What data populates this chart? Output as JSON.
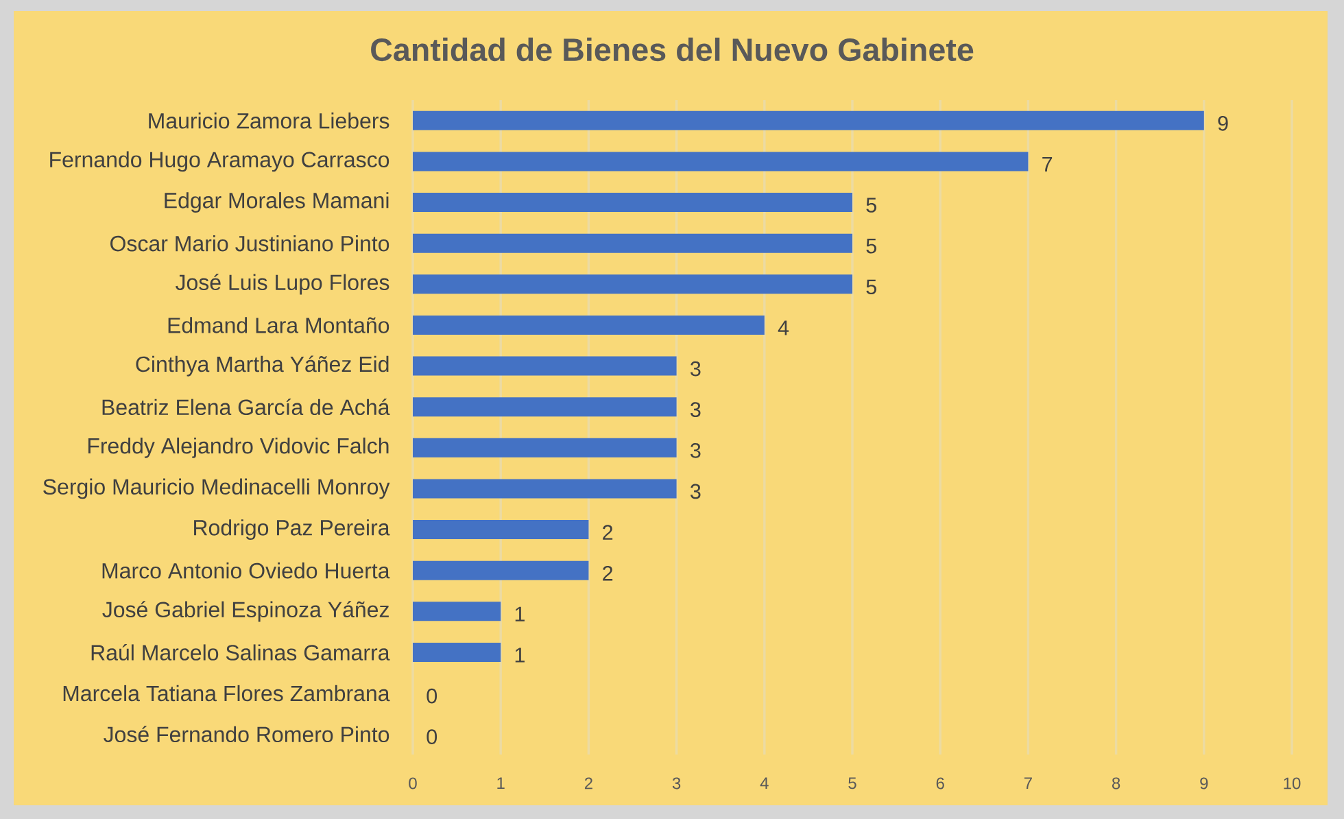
{
  "chart_data": {
    "type": "bar",
    "orientation": "horizontal",
    "title": "Cantidad de Bienes del Nuevo Gabinete",
    "categories": [
      "Mauricio Zamora Liebers",
      "Fernando Hugo Aramayo Carrasco",
      "Edgar Morales Mamani",
      "Oscar Mario Justiniano Pinto",
      "José Luis Lupo Flores",
      "Edmand Lara Montaño",
      "Cinthya Martha Yáñez Eid",
      "Beatriz Elena García de Achá",
      "Freddy Alejandro Vidovic Falch",
      "Sergio Mauricio Medinacelli Monroy",
      "Rodrigo Paz Pereira",
      "Marco Antonio Oviedo Huerta",
      "José Gabriel Espinoza Yáñez",
      "Raúl Marcelo Salinas Gamarra",
      "Marcela Tatiana Flores Zambrana",
      "José Fernando Romero Pinto"
    ],
    "values": [
      9,
      7,
      5,
      5,
      5,
      4,
      3,
      3,
      3,
      3,
      2,
      2,
      1,
      1,
      0,
      0
    ],
    "color": "#4472c4",
    "xlim": [
      0,
      10
    ],
    "xticks": [
      0,
      1,
      2,
      3,
      4,
      5,
      6,
      7,
      8,
      9,
      10
    ],
    "grid": "x",
    "data_labels": true
  }
}
